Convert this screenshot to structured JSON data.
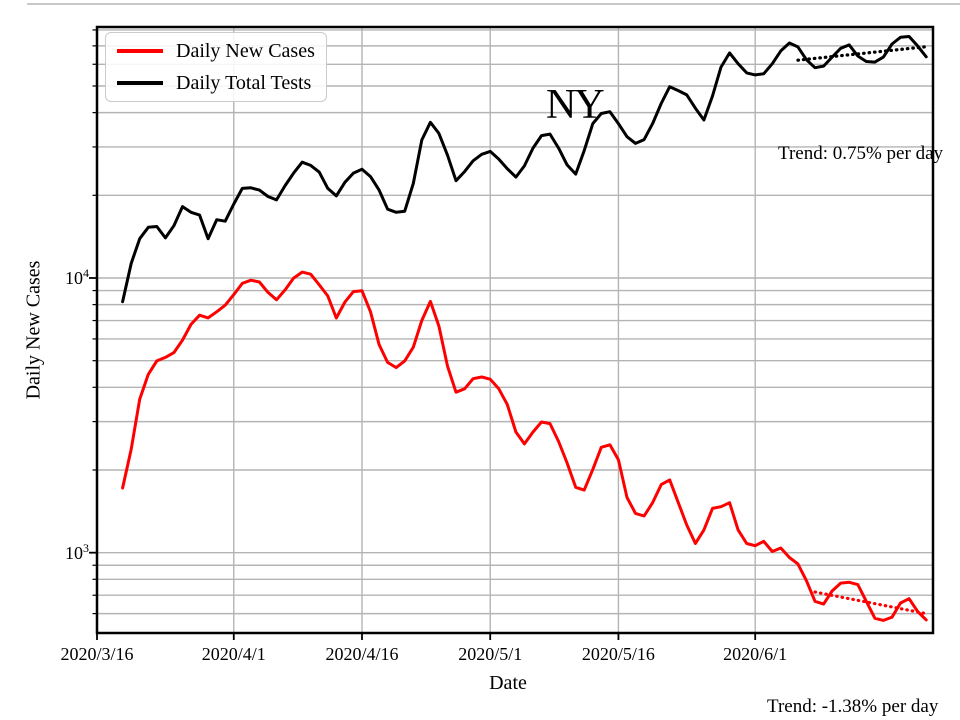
{
  "figure": {
    "annotation": "NY"
  },
  "colors": {
    "series_red": "#ff0000",
    "series_black": "#000000",
    "grid": "#b4b4b4",
    "legend_border": "#cbcbcb"
  },
  "legend": {
    "items": [
      {
        "label": "Daily New Cases",
        "color": "#ff0000"
      },
      {
        "label": "Daily Total Tests",
        "color": "#000000"
      }
    ]
  },
  "axes": {
    "xlabel": "Date",
    "ylabel": "Daily New Cases",
    "x_ticks": [
      "2020/3/16",
      "2020/4/1",
      "2020/4/16",
      "2020/5/1",
      "2020/5/16",
      "2020/6/1"
    ],
    "y_ticks": [
      {
        "base": "10",
        "exp": "4",
        "value": 10000
      },
      {
        "base": "10",
        "exp": "3",
        "value": 1000
      }
    ]
  },
  "chart_data": {
    "type": "line",
    "title": "",
    "annotation": "NY",
    "xlabel": "Date",
    "ylabel": "Daily New Cases",
    "yscale": "log",
    "ylim": [
      510,
      82000
    ],
    "xlim": [
      "2020/3/16",
      "2020/6/22"
    ],
    "grid": true,
    "legend_position": "upper left",
    "x": [
      "2020/3/19",
      "2020/3/20",
      "2020/3/21",
      "2020/3/22",
      "2020/3/23",
      "2020/3/24",
      "2020/3/25",
      "2020/3/26",
      "2020/3/27",
      "2020/3/28",
      "2020/3/29",
      "2020/3/30",
      "2020/3/31",
      "2020/4/1",
      "2020/4/2",
      "2020/4/3",
      "2020/4/4",
      "2020/4/5",
      "2020/4/6",
      "2020/4/7",
      "2020/4/8",
      "2020/4/9",
      "2020/4/10",
      "2020/4/11",
      "2020/4/12",
      "2020/4/13",
      "2020/4/14",
      "2020/4/15",
      "2020/4/16",
      "2020/4/17",
      "2020/4/18",
      "2020/4/19",
      "2020/4/20",
      "2020/4/21",
      "2020/4/22",
      "2020/4/23",
      "2020/4/24",
      "2020/4/25",
      "2020/4/26",
      "2020/4/27",
      "2020/4/28",
      "2020/4/29",
      "2020/4/30",
      "2020/5/1",
      "2020/5/2",
      "2020/5/3",
      "2020/5/4",
      "2020/5/5",
      "2020/5/6",
      "2020/5/7",
      "2020/5/8",
      "2020/5/9",
      "2020/5/10",
      "2020/5/11",
      "2020/5/12",
      "2020/5/13",
      "2020/5/14",
      "2020/5/15",
      "2020/5/16",
      "2020/5/17",
      "2020/5/18",
      "2020/5/19",
      "2020/5/20",
      "2020/5/21",
      "2020/5/22",
      "2020/5/23",
      "2020/5/24",
      "2020/5/25",
      "2020/5/26",
      "2020/5/27",
      "2020/5/28",
      "2020/5/29",
      "2020/5/30",
      "2020/5/31",
      "2020/6/1",
      "2020/6/2",
      "2020/6/3",
      "2020/6/4",
      "2020/6/5",
      "2020/6/6",
      "2020/6/7",
      "2020/6/8",
      "2020/6/9",
      "2020/6/10",
      "2020/6/11",
      "2020/6/12",
      "2020/6/13",
      "2020/6/14",
      "2020/6/15",
      "2020/6/16",
      "2020/6/17",
      "2020/6/18",
      "2020/6/19",
      "2020/6/20",
      "2020/6/21"
    ],
    "series": [
      {
        "name": "Daily New Cases",
        "color": "#ff0000",
        "values": [
          1720,
          2380,
          3620,
          4460,
          4990,
          5140,
          5350,
          5940,
          6780,
          7320,
          7160,
          7530,
          7960,
          8700,
          9560,
          9820,
          9670,
          8860,
          8330,
          9050,
          9990,
          10510,
          10320,
          9450,
          8600,
          7150,
          8170,
          8920,
          8980,
          7530,
          5720,
          4930,
          4720,
          4990,
          5600,
          7000,
          8220,
          6680,
          4780,
          3840,
          3950,
          4300,
          4360,
          4280,
          3950,
          3460,
          2750,
          2490,
          2750,
          2990,
          2950,
          2540,
          2120,
          1730,
          1690,
          2010,
          2420,
          2470,
          2180,
          1590,
          1390,
          1360,
          1520,
          1770,
          1840,
          1520,
          1260,
          1080,
          1210,
          1450,
          1470,
          1520,
          1210,
          1080,
          1060,
          1100,
          1010,
          1040,
          960,
          910,
          790,
          665,
          650,
          725,
          775,
          780,
          765,
          665,
          577,
          567,
          582,
          656,
          680,
          611,
          569
        ]
      },
      {
        "name": "Daily Total Tests",
        "color": "#000000",
        "values": [
          8200,
          11300,
          13900,
          15300,
          15400,
          14000,
          15500,
          18200,
          17350,
          16950,
          13900,
          16300,
          16100,
          18600,
          21200,
          21300,
          20900,
          19800,
          19250,
          21700,
          24100,
          26400,
          25700,
          24300,
          21200,
          19900,
          22300,
          24100,
          24900,
          23400,
          20900,
          17800,
          17350,
          17500,
          22100,
          31800,
          36900,
          33600,
          28000,
          22600,
          24400,
          26700,
          28200,
          28900,
          27100,
          25000,
          23300,
          25600,
          29700,
          33000,
          33400,
          29700,
          25800,
          23900,
          29100,
          36500,
          39700,
          40300,
          36500,
          32700,
          30900,
          31900,
          36500,
          43200,
          49700,
          48100,
          46400,
          41500,
          37600,
          46000,
          58600,
          66000,
          60300,
          55800,
          54900,
          55400,
          60300,
          67100,
          71700,
          69400,
          62300,
          58300,
          59100,
          63700,
          68600,
          70600,
          64300,
          61400,
          61100,
          63700,
          71100,
          75200,
          75700,
          70000,
          63900
        ]
      }
    ],
    "trend_lines": [
      {
        "series": "Daily Total Tests",
        "label": "Trend: 0.75% per day",
        "style": "dotted",
        "color": "#000000",
        "x": [
          "2020/6/6",
          "2020/6/21"
        ],
        "values": [
          62100,
          69500
        ]
      },
      {
        "series": "Daily New Cases",
        "label": "Trend: -1.38% per day",
        "style": "dotted",
        "color": "#ff0000",
        "x": [
          "2020/6/8",
          "2020/6/21"
        ],
        "values": [
          719,
          600
        ]
      }
    ]
  }
}
